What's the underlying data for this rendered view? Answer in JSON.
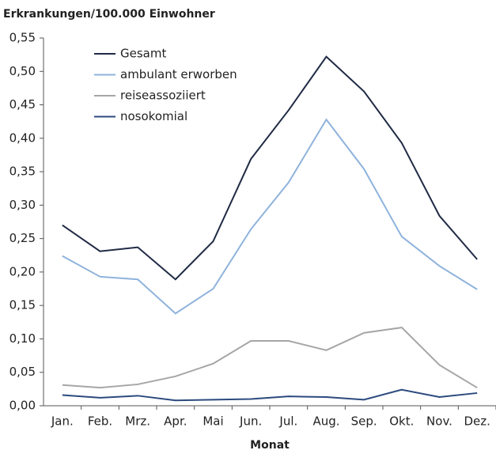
{
  "chart_data": {
    "type": "line",
    "title": "Erkrankungen/100.000 Einwohner",
    "xlabel": "Monat",
    "categories": [
      "Jan.",
      "Feb.",
      "Mrz.",
      "Apr.",
      "Mai",
      "Jun.",
      "Jul.",
      "Aug.",
      "Sep.",
      "Okt.",
      "Nov.",
      "Dez."
    ],
    "series": [
      {
        "name": "Gesamt",
        "color": "#1f2a44",
        "values": [
          0.27,
          0.231,
          0.237,
          0.189,
          0.246,
          0.369,
          0.442,
          0.522,
          0.47,
          0.393,
          0.284,
          0.219
        ]
      },
      {
        "name": "ambulant erworben",
        "color": "#8fb3dc",
        "values": [
          0.224,
          0.193,
          0.189,
          0.138,
          0.175,
          0.264,
          0.334,
          0.428,
          0.354,
          0.253,
          0.209,
          0.174
        ]
      },
      {
        "name": "reiseassoziiert",
        "color": "#a6a6a6",
        "values": [
          0.031,
          0.027,
          0.032,
          0.044,
          0.063,
          0.097,
          0.097,
          0.083,
          0.109,
          0.117,
          0.061,
          0.027
        ]
      },
      {
        "name": "nosokomial",
        "color": "#2b4a7e",
        "values": [
          0.016,
          0.012,
          0.015,
          0.008,
          0.009,
          0.01,
          0.014,
          0.013,
          0.009,
          0.024,
          0.013,
          0.019
        ]
      }
    ],
    "ylim": [
      0,
      0.55
    ],
    "yticks": [
      {
        "value": 0,
        "label": "0,00"
      },
      {
        "value": 0.05,
        "label": "0,05"
      },
      {
        "value": 0.1,
        "label": "0,10"
      },
      {
        "value": 0.15,
        "label": "0,15"
      },
      {
        "value": 0.2,
        "label": "0,20"
      },
      {
        "value": 0.25,
        "label": "0,25"
      },
      {
        "value": 0.3,
        "label": "0,30"
      },
      {
        "value": 0.35,
        "label": "0,35"
      },
      {
        "value": 0.4,
        "label": "0,40"
      },
      {
        "value": 0.45,
        "label": "0,45"
      },
      {
        "value": 0.5,
        "label": "0,50"
      },
      {
        "value": 0.55,
        "label": "0,55"
      }
    ],
    "grid": false
  }
}
